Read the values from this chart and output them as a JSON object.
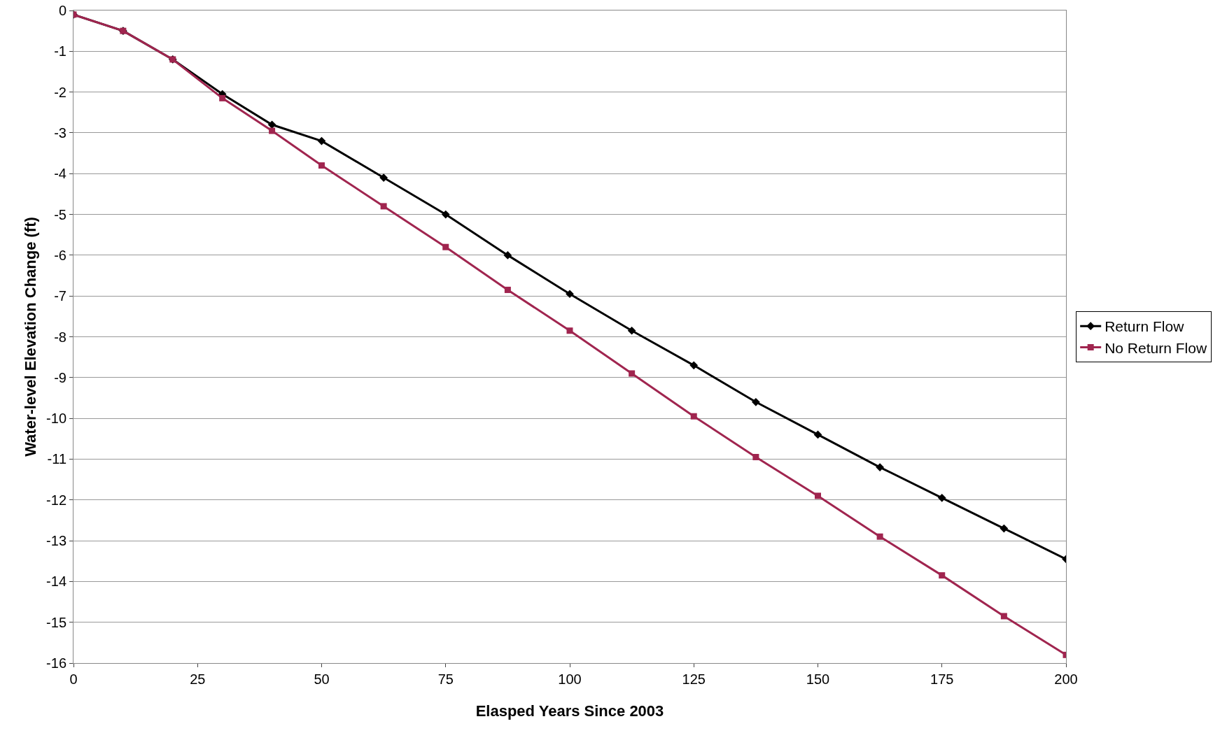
{
  "chart_data": {
    "type": "line",
    "xlabel": "Elasped Years Since 2003",
    "ylabel": "Water-level Elevation Change (ft)",
    "x": [
      0,
      10,
      20,
      30,
      40,
      50,
      62.5,
      75,
      87.5,
      100,
      112.5,
      125,
      137.5,
      150,
      162.5,
      175,
      187.5,
      200
    ],
    "series": [
      {
        "name": "Return Flow",
        "color": "#000000",
        "marker": "diamond",
        "values": [
          -0.1,
          -0.5,
          -1.2,
          -2.05,
          -2.8,
          -3.2,
          -4.1,
          -5.0,
          -6.0,
          -6.95,
          -7.85,
          -8.7,
          -9.6,
          -10.4,
          -11.2,
          -11.95,
          -12.7,
          -13.45
        ]
      },
      {
        "name": "No Return Flow",
        "color": "#a0254f",
        "marker": "square",
        "values": [
          -0.1,
          -0.5,
          -1.2,
          -2.15,
          -2.95,
          -3.8,
          -4.8,
          -5.8,
          -6.85,
          -7.85,
          -8.9,
          -9.95,
          -10.95,
          -11.9,
          -12.9,
          -13.85,
          -14.85,
          -15.8
        ]
      }
    ],
    "xlim": [
      0,
      200
    ],
    "xticks": [
      0,
      25,
      50,
      75,
      100,
      125,
      150,
      175,
      200
    ],
    "ylim": [
      -16,
      0
    ],
    "yticks": [
      -16,
      -15,
      -14,
      -13,
      -12,
      -11,
      -10,
      -9,
      -8,
      -7,
      -6,
      -5,
      -4,
      -3,
      -2,
      -1,
      0
    ],
    "grid": "y",
    "legend": "right",
    "line_style": "solid"
  }
}
